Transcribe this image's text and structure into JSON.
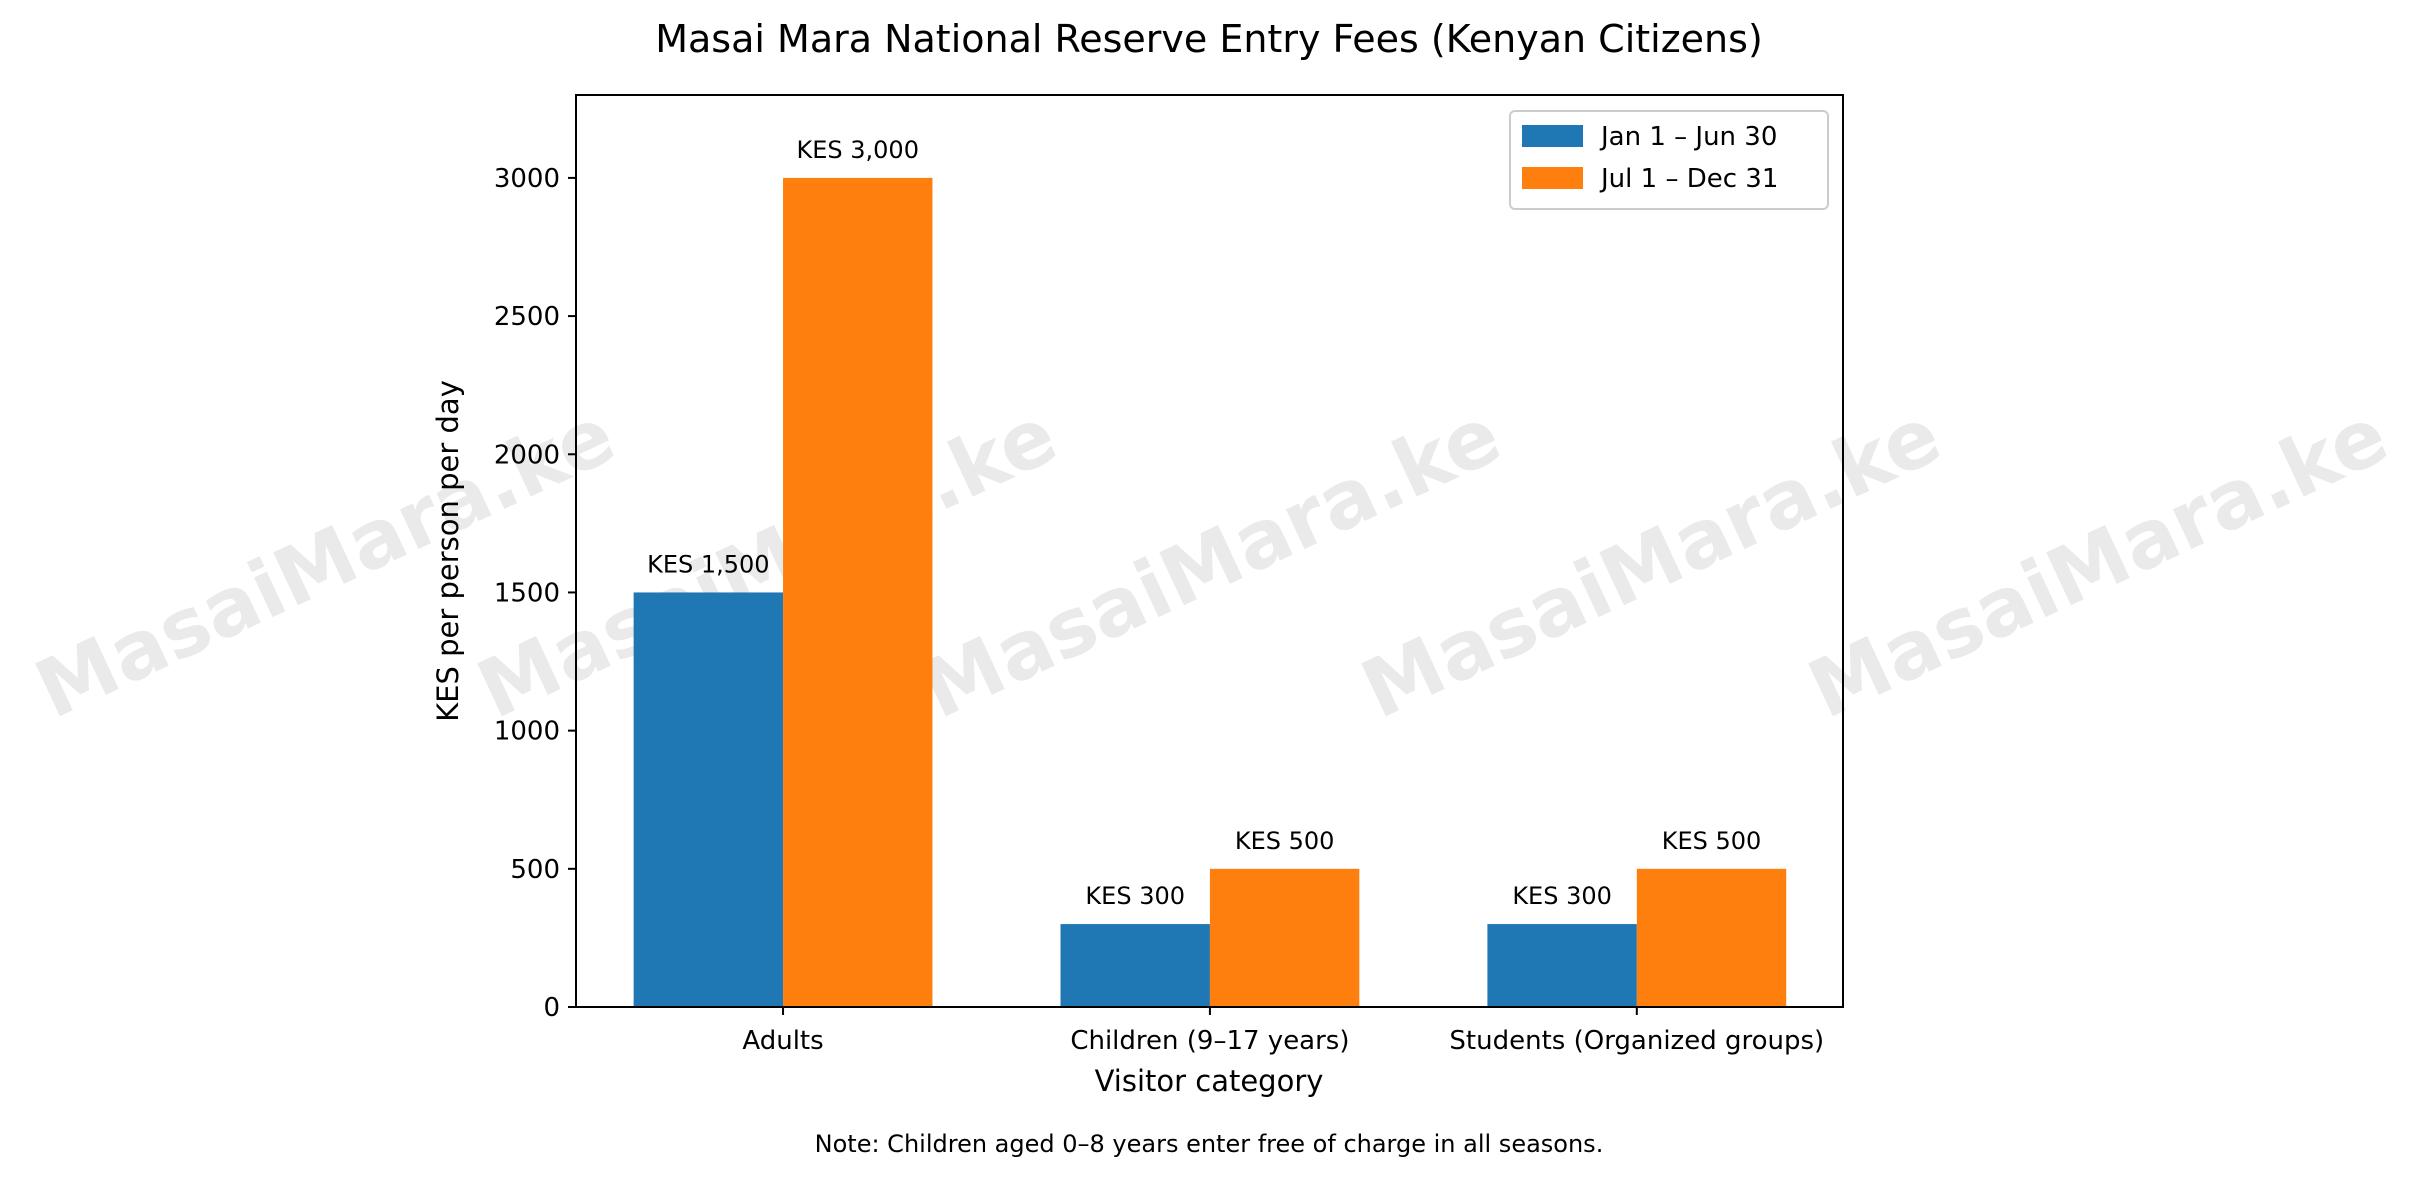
{
  "chart_data": {
    "type": "bar",
    "title": "Masai Mara National Reserve Entry Fees (Kenyan Citizens)",
    "xlabel": "Visitor category",
    "ylabel": "KES per person per day",
    "categories": [
      "Adults",
      "Children (9–17 years)",
      "Students (Organized groups)"
    ],
    "series": [
      {
        "name": "Jan 1 – Jun 30",
        "values": [
          1500,
          300,
          300
        ],
        "labels": [
          "KES 1,500",
          "KES 300",
          "KES 300"
        ],
        "color": "#1f77b4"
      },
      {
        "name": "Jul 1 – Dec 31",
        "values": [
          3000,
          500,
          500
        ],
        "labels": [
          "KES 3,000",
          "KES 500",
          "KES 500"
        ],
        "color": "#ff7f0e"
      }
    ],
    "ylim": [
      0,
      3300
    ],
    "yticks": [
      0,
      500,
      1000,
      1500,
      2000,
      2500,
      3000
    ],
    "grid": false,
    "legend": "top-right",
    "note": "Note: Children aged 0–8 years enter free of charge in all seasons.",
    "watermark": "MasaiMara.ke"
  }
}
